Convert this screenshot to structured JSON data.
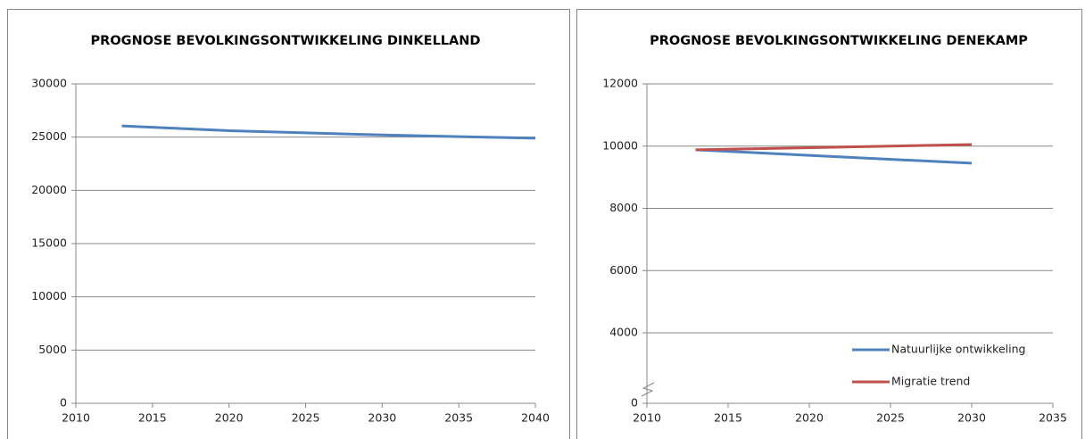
{
  "chart_data": [
    {
      "type": "line",
      "title": "PROGNOSE BEVOLKINGSONTWIKKELING DINKELLAND",
      "x": [
        2013,
        2020,
        2025,
        2030,
        2035,
        2040
      ],
      "series": [
        {
          "name": null,
          "color": "#4f81bd",
          "values": [
            26050,
            25600,
            25400,
            25200,
            25050,
            24900
          ]
        }
      ],
      "xlim": [
        2010,
        2040
      ],
      "xticks": [
        2010,
        2015,
        2020,
        2025,
        2030,
        2035,
        2040
      ],
      "ylim": [
        0,
        30000
      ],
      "yticks": [
        0,
        5000,
        10000,
        15000,
        20000,
        25000,
        30000
      ],
      "grid": true
    },
    {
      "type": "line",
      "title": "PROGNOSE BEVOLKINGSONTWIKKELING DENEKAMP",
      "x": [
        2013,
        2030
      ],
      "series": [
        {
          "name": "Natuurlijke ontwikkeling",
          "color": "#4f81bd",
          "values": [
            9880,
            9450
          ]
        },
        {
          "name": "Migratie trend",
          "color": "#c0504d",
          "values": [
            9880,
            10050
          ]
        }
      ],
      "xlim": [
        2010,
        2035
      ],
      "xticks": [
        2010,
        2015,
        2020,
        2025,
        2030,
        2035
      ],
      "ylim": [
        0,
        12000
      ],
      "yticks": [
        0,
        4000,
        6000,
        8000,
        10000,
        12000
      ],
      "grid": true,
      "axis_break": true,
      "legend": "lower right"
    }
  ]
}
